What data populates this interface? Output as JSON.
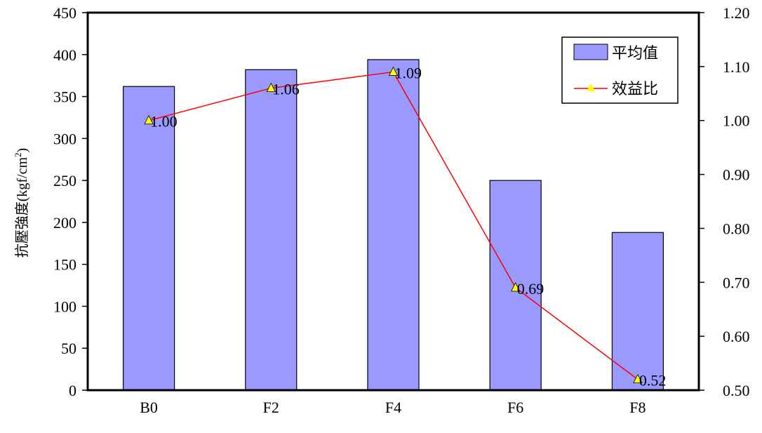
{
  "chart_data": {
    "type": "bar",
    "categories": [
      "B0",
      "F2",
      "F4",
      "F6",
      "F8"
    ],
    "series": [
      {
        "name": "平均值",
        "type": "bar",
        "axis": "left",
        "values": [
          362,
          382,
          394,
          250,
          188
        ],
        "color": "#9999ff"
      },
      {
        "name": "效益比",
        "type": "line",
        "axis": "right",
        "values": [
          1.0,
          1.06,
          1.09,
          0.69,
          0.52
        ],
        "labels": [
          "1.00",
          "1.06",
          "1.09",
          "0.69",
          "0.52"
        ],
        "color": "#ff0000",
        "marker_color": "#ffff00"
      }
    ],
    "ylabel_main": "抗壓強度(kgf/cm",
    "ylabel_sup": "2",
    "ylabel_close": ")",
    "ylim": [
      0,
      450
    ],
    "yticks": [
      "0",
      "50",
      "100",
      "150",
      "200",
      "250",
      "300",
      "350",
      "400",
      "450"
    ],
    "y2lim": [
      0.5,
      1.2
    ],
    "y2ticks": [
      "0.50",
      "0.60",
      "0.70",
      "0.80",
      "0.90",
      "1.00",
      "1.10",
      "1.20"
    ],
    "legend_position": "top-right",
    "grid": false
  }
}
